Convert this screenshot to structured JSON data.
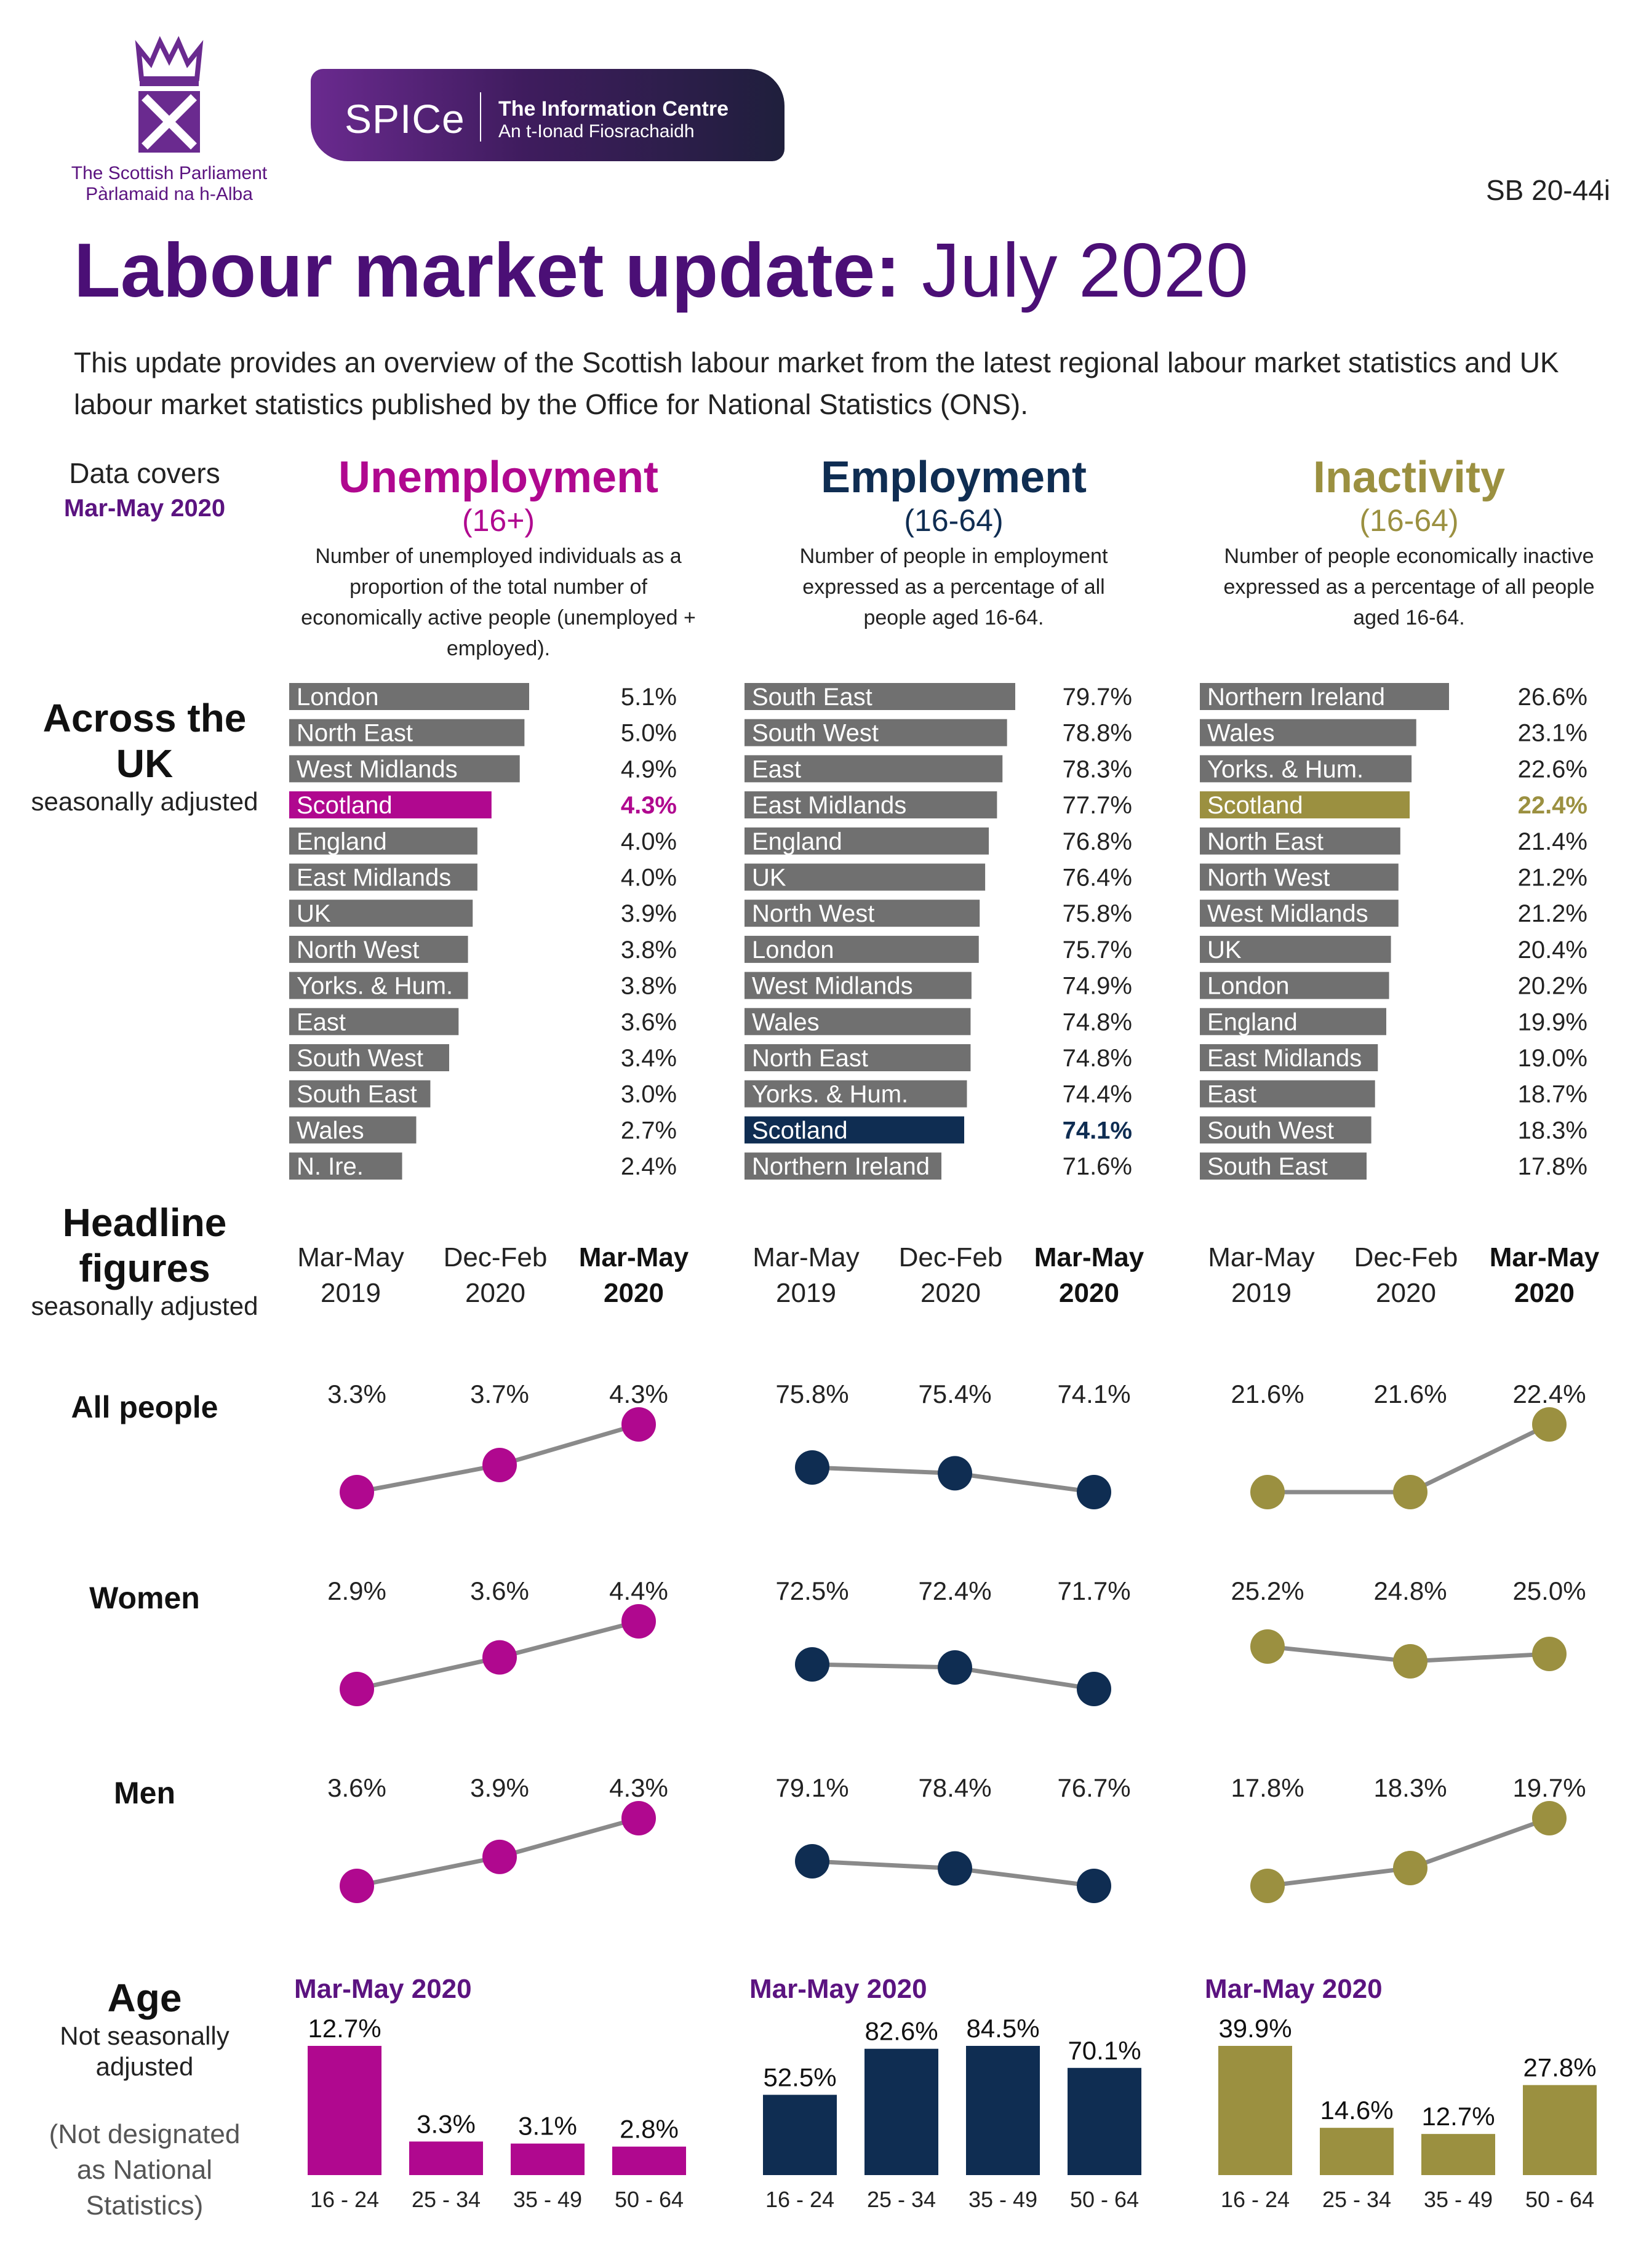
{
  "header": {
    "org_name_en": "The Scottish Parliament",
    "org_name_gd": "Pàrlamaid na h-Alba",
    "spice_logo": "SPICe",
    "spice_title": "The Information Centre",
    "spice_subtitle": "An t-Ionad Fiosrachaidh",
    "reference": "SB 20-44i",
    "title_bold": "Labour market update:",
    "title_light": "July 2020",
    "intro": "This update provides an overview of the Scottish labour market from the latest regional labour market statistics and UK labour market statistics published by the Office for National Statistics (ONS)."
  },
  "data_cover": {
    "label": "Data covers",
    "period": "Mar-May 2020"
  },
  "sections": {
    "across": {
      "title": "Across the UK",
      "subtitle": "seasonally adjusted"
    },
    "headline": {
      "title": "Headline figures",
      "subtitle": "seasonally adjusted"
    },
    "age": {
      "title": "Age",
      "subtitle": "Not seasonally adjusted",
      "note": "(Not designated as National Statistics)"
    }
  },
  "columns": [
    {
      "title": "Unemployment",
      "age_range": "(16+)",
      "description": "Number of unemployed individuals as a proportion of the total number of economically active people (unemployed + employed).",
      "color": "#b0088f"
    },
    {
      "title": "Employment",
      "age_range": "(16-64)",
      "description": "Number of people in employment expressed as a percentage of all people aged 16-64.",
      "color": "#0f2d52"
    },
    {
      "title": "Inactivity",
      "age_range": "(16-64)",
      "description": "Number of people economically inactive expressed as a percentage of all people aged 16-64.",
      "color": "#9b9040"
    }
  ],
  "periods": [
    "Mar-May 2019",
    "Dec-Feb 2020",
    "Mar-May 2020"
  ],
  "row_labels": [
    "All people",
    "Women",
    "Men"
  ],
  "age_heading": "Mar-May 2020",
  "colors": {
    "grey_bar": "#707070",
    "line": "#8a8a8a",
    "title": "#4b0f76"
  },
  "chart_data": [
    {
      "type": "bar",
      "title": "Unemployment (16+) across the UK",
      "categories": [
        "London",
        "North East",
        "West Midlands",
        "Scotland",
        "England",
        "East Midlands",
        "UK",
        "North West",
        "Yorks. & Hum.",
        "East",
        "South West",
        "South East",
        "Wales",
        "N. Ire."
      ],
      "values": [
        5.1,
        5.0,
        4.9,
        4.3,
        4.0,
        4.0,
        3.9,
        3.8,
        3.8,
        3.6,
        3.4,
        3.0,
        2.7,
        2.4
      ],
      "labels": [
        "5.1%",
        "5.0%",
        "4.9%",
        "4.3%",
        "4.0%",
        "4.0%",
        "3.9%",
        "3.8%",
        "3.8%",
        "3.6%",
        "3.4%",
        "3.0%",
        "2.7%",
        "2.4%"
      ],
      "highlight": "Scotland"
    },
    {
      "type": "bar",
      "title": "Employment (16-64) across the UK",
      "categories": [
        "South East",
        "South West",
        "East",
        "East Midlands",
        "England",
        "UK",
        "North West",
        "London",
        "West Midlands",
        "Wales",
        "North East",
        "Yorks. & Hum.",
        "Scotland",
        "Northern Ireland"
      ],
      "values": [
        79.7,
        78.8,
        78.3,
        77.7,
        76.8,
        76.4,
        75.8,
        75.7,
        74.9,
        74.8,
        74.8,
        74.4,
        74.1,
        71.6
      ],
      "labels": [
        "79.7%",
        "78.8%",
        "78.3%",
        "77.7%",
        "76.8%",
        "76.4%",
        "75.8%",
        "75.7%",
        "74.9%",
        "74.8%",
        "74.8%",
        "74.4%",
        "74.1%",
        "71.6%"
      ],
      "highlight": "Scotland"
    },
    {
      "type": "bar",
      "title": "Inactivity (16-64) across the UK",
      "categories": [
        "Northern Ireland",
        "Wales",
        "Yorks. & Hum.",
        "Scotland",
        "North East",
        "North West",
        "West Midlands",
        "UK",
        "London",
        "England",
        "East Midlands",
        "East",
        "South West",
        "South East"
      ],
      "values": [
        26.6,
        23.1,
        22.6,
        22.4,
        21.4,
        21.2,
        21.2,
        20.4,
        20.2,
        19.9,
        19.0,
        18.7,
        18.3,
        17.8
      ],
      "labels": [
        "26.6%",
        "23.1%",
        "22.6%",
        "22.4%",
        "21.4%",
        "21.2%",
        "21.2%",
        "20.4%",
        "20.2%",
        "19.9%",
        "19.0%",
        "18.7%",
        "18.3%",
        "17.8%"
      ],
      "highlight": "Scotland"
    },
    {
      "type": "line",
      "title": "Unemployment headline figures",
      "x": [
        "Mar-May 2019",
        "Dec-Feb 2020",
        "Mar-May 2020"
      ],
      "series": [
        {
          "name": "All people",
          "values": [
            3.3,
            3.7,
            4.3
          ],
          "labels": [
            "3.3%",
            "3.7%",
            "4.3%"
          ]
        },
        {
          "name": "Women",
          "values": [
            2.9,
            3.6,
            4.4
          ],
          "labels": [
            "2.9%",
            "3.6%",
            "4.4%"
          ]
        },
        {
          "name": "Men",
          "values": [
            3.6,
            3.9,
            4.3
          ],
          "labels": [
            "3.6%",
            "3.9%",
            "4.3%"
          ]
        }
      ]
    },
    {
      "type": "line",
      "title": "Employment headline figures",
      "x": [
        "Mar-May 2019",
        "Dec-Feb 2020",
        "Mar-May 2020"
      ],
      "series": [
        {
          "name": "All people",
          "values": [
            75.8,
            75.4,
            74.1
          ],
          "labels": [
            "75.8%",
            "75.4%",
            "74.1%"
          ]
        },
        {
          "name": "Women",
          "values": [
            72.5,
            72.4,
            71.7
          ],
          "labels": [
            "72.5%",
            "72.4%",
            "71.7%"
          ]
        },
        {
          "name": "Men",
          "values": [
            79.1,
            78.4,
            76.7
          ],
          "labels": [
            "79.1%",
            "78.4%",
            "76.7%"
          ]
        }
      ]
    },
    {
      "type": "line",
      "title": "Inactivity headline figures",
      "x": [
        "Mar-May 2019",
        "Dec-Feb 2020",
        "Mar-May 2020"
      ],
      "series": [
        {
          "name": "All people",
          "values": [
            21.6,
            21.6,
            22.4
          ],
          "labels": [
            "21.6%",
            "21.6%",
            "22.4%"
          ]
        },
        {
          "name": "Women",
          "values": [
            25.2,
            24.8,
            25.0
          ],
          "labels": [
            "25.2%",
            "24.8%",
            "25.0%"
          ]
        },
        {
          "name": "Men",
          "values": [
            17.8,
            18.3,
            19.7
          ],
          "labels": [
            "17.8%",
            "18.3%",
            "19.7%"
          ]
        }
      ]
    },
    {
      "type": "bar",
      "title": "Unemployment by age, Mar-May 2020",
      "categories": [
        "16 - 24",
        "25 - 34",
        "35 - 49",
        "50 - 64"
      ],
      "values": [
        12.7,
        3.3,
        3.1,
        2.8
      ],
      "labels": [
        "12.7%",
        "3.3%",
        "3.1%",
        "2.8%"
      ]
    },
    {
      "type": "bar",
      "title": "Employment by age, Mar-May 2020",
      "categories": [
        "16 - 24",
        "25 - 34",
        "35 - 49",
        "50 - 64"
      ],
      "values": [
        52.5,
        82.6,
        84.5,
        70.1
      ],
      "labels": [
        "52.5%",
        "82.6%",
        "84.5%",
        "70.1%"
      ]
    },
    {
      "type": "bar",
      "title": "Inactivity by age, Mar-May 2020",
      "categories": [
        "16 - 24",
        "25 - 34",
        "35 - 49",
        "50 - 64"
      ],
      "values": [
        39.9,
        14.6,
        12.7,
        27.8
      ],
      "labels": [
        "39.9%",
        "14.6%",
        "12.7%",
        "27.8%"
      ]
    }
  ]
}
